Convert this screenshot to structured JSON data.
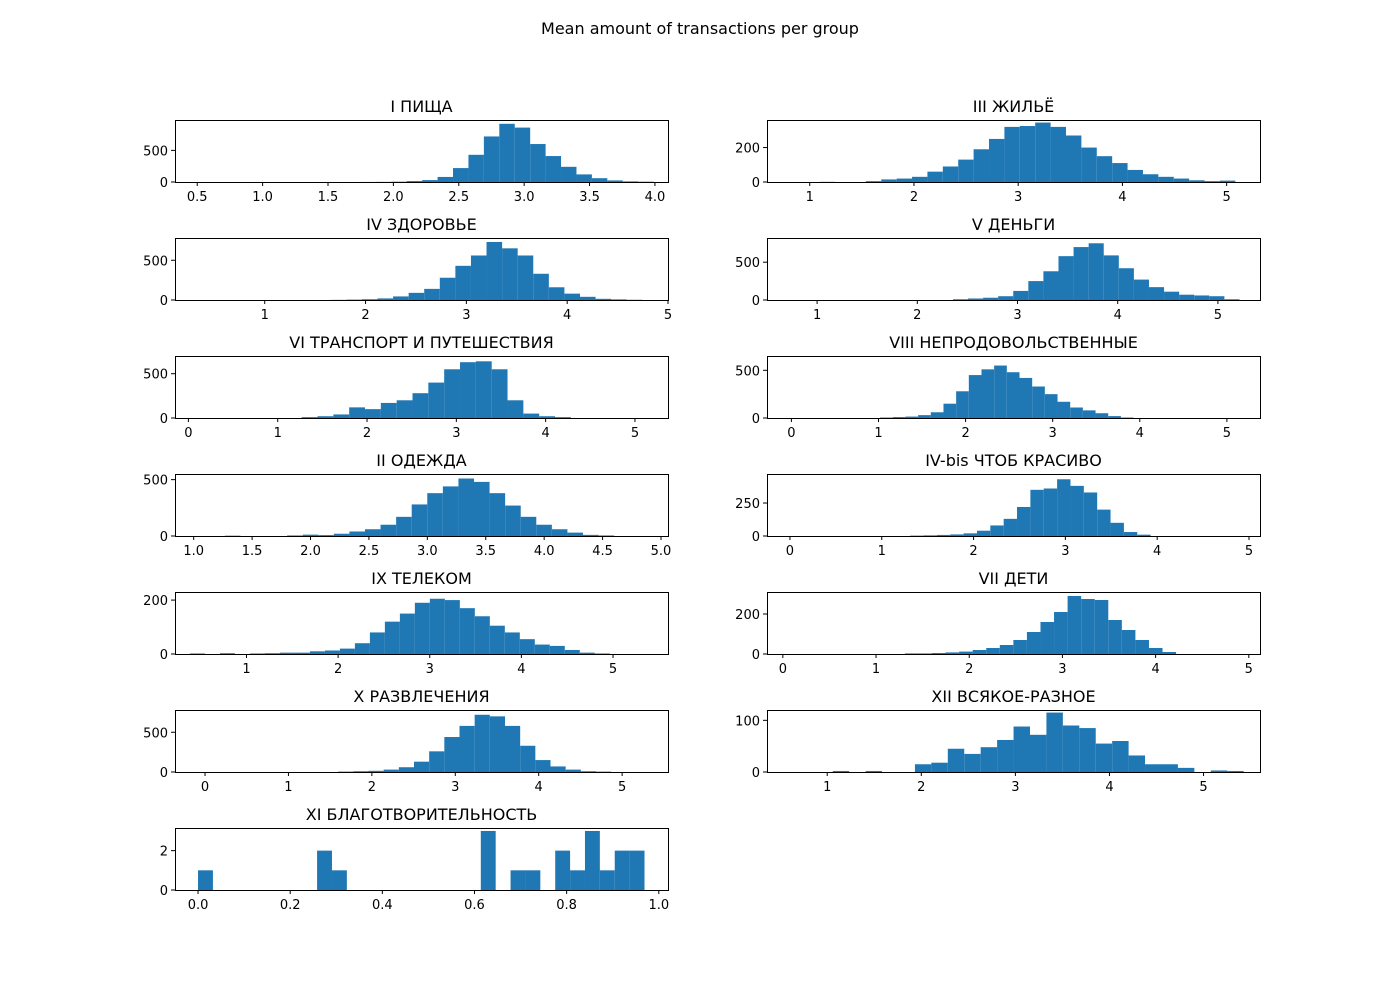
{
  "figure": {
    "suptitle": "Mean amount of transactions per group",
    "bar_color": "#1f77b4"
  },
  "chart_data": [
    {
      "type": "bar",
      "title": "I ПИЩА",
      "xlim": [
        0.33,
        4.1
      ],
      "ylim": [
        0,
        980
      ],
      "xticks": [
        0.5,
        1.0,
        1.5,
        2.0,
        2.5,
        3.0,
        3.5,
        4.0
      ],
      "xticklabels": [
        "0.5",
        "1.0",
        "1.5",
        "2.0",
        "2.5",
        "3.0",
        "3.5",
        "4.0"
      ],
      "yticks": [
        0,
        500
      ],
      "yticklabels": [
        "0",
        "500"
      ],
      "bin_start": 0.45,
      "bin_width": 0.118,
      "values": [
        0,
        0,
        0,
        0,
        0,
        0,
        0,
        0,
        0,
        0,
        0,
        1,
        2,
        5,
        15,
        30,
        80,
        220,
        430,
        720,
        920,
        860,
        600,
        410,
        240,
        120,
        60,
        25,
        10,
        5
      ]
    },
    {
      "type": "bar",
      "title": "III ЖИЛЬЁ",
      "xlim": [
        0.59,
        5.32
      ],
      "ylim": [
        0,
        360
      ],
      "xticks": [
        1,
        2,
        3,
        4,
        5
      ],
      "xticklabels": [
        "1",
        "2",
        "3",
        "4",
        "5"
      ],
      "yticks": [
        0,
        200
      ],
      "yticklabels": [
        "0",
        "200"
      ],
      "bin_start": 0.8,
      "bin_width": 0.1477,
      "values": [
        0,
        0,
        1,
        0,
        0,
        5,
        15,
        20,
        30,
        60,
        90,
        130,
        190,
        250,
        320,
        325,
        345,
        320,
        270,
        200,
        150,
        110,
        70,
        45,
        30,
        20,
        10,
        5,
        8,
        0
      ]
    },
    {
      "type": "bar",
      "title": "IV ЗДОРОВЬЕ",
      "xlim": [
        0.11,
        5.0
      ],
      "ylim": [
        0,
        780
      ],
      "xticks": [
        1,
        2,
        3,
        4,
        5
      ],
      "xticklabels": [
        "1",
        "2",
        "3",
        "4",
        "5"
      ],
      "yticks": [
        0,
        500
      ],
      "yticklabels": [
        "0",
        "500"
      ],
      "bin_start": 0.11,
      "bin_width": 0.1545,
      "values": [
        0,
        0,
        0,
        0,
        0,
        0,
        0,
        0,
        0,
        0,
        2,
        5,
        10,
        20,
        45,
        90,
        140,
        280,
        430,
        560,
        730,
        650,
        560,
        330,
        160,
        80,
        40,
        15,
        8,
        3
      ]
    },
    {
      "type": "bar",
      "title": "V ДЕНЬГИ",
      "xlim": [
        0.5,
        5.42
      ],
      "ylim": [
        0,
        820
      ],
      "xticks": [
        1,
        2,
        3,
        4,
        5
      ],
      "xticklabels": [
        "1",
        "2",
        "3",
        "4",
        "5"
      ],
      "yticks": [
        0,
        500
      ],
      "yticklabels": [
        "0",
        "500"
      ],
      "bin_start": 0.7,
      "bin_width": 0.1505,
      "values": [
        0,
        0,
        0,
        0,
        0,
        0,
        0,
        0,
        0,
        0,
        0,
        10,
        20,
        30,
        50,
        120,
        250,
        380,
        580,
        700,
        750,
        590,
        420,
        270,
        170,
        110,
        70,
        60,
        50,
        10
      ]
    },
    {
      "type": "bar",
      "title": "VI ТРАНСПОРТ И ПУТЕШЕСТВИЯ",
      "xlim": [
        -0.15,
        5.37
      ],
      "ylim": [
        0,
        700
      ],
      "xticks": [
        0,
        1,
        2,
        3,
        4,
        5
      ],
      "xticklabels": [
        "0",
        "1",
        "2",
        "3",
        "4",
        "5"
      ],
      "yticks": [
        0,
        500
      ],
      "yticklabels": [
        "0",
        "500"
      ],
      "bin_start": -0.15,
      "bin_width": 0.1773,
      "values": [
        0,
        0,
        0,
        0,
        0,
        0,
        0,
        0,
        10,
        20,
        40,
        120,
        100,
        170,
        200,
        280,
        400,
        550,
        630,
        640,
        550,
        200,
        50,
        20,
        10,
        0,
        0,
        0,
        0,
        0
      ]
    },
    {
      "type": "bar",
      "title": "VIII НЕПРОДОВОЛЬСТВЕННЫЕ",
      "xlim": [
        -0.28,
        5.38
      ],
      "ylim": [
        0,
        650
      ],
      "xticks": [
        0,
        1,
        2,
        3,
        4,
        5
      ],
      "xticklabels": [
        "0",
        "1",
        "2",
        "3",
        "4",
        "5"
      ],
      "yticks": [
        0,
        500
      ],
      "yticklabels": [
        "0",
        "500"
      ],
      "bin_start": 0.0,
      "bin_width": 0.1455,
      "values": [
        0,
        0,
        0,
        0,
        0,
        0,
        0,
        5,
        10,
        15,
        30,
        60,
        150,
        280,
        450,
        510,
        550,
        480,
        420,
        330,
        250,
        170,
        110,
        80,
        50,
        20,
        5,
        0,
        0,
        0
      ]
    },
    {
      "type": "bar",
      "title": "II ОДЕЖДА",
      "xlim": [
        0.84,
        5.06
      ],
      "ylim": [
        0,
        550
      ],
      "xticks": [
        1.0,
        1.5,
        2.0,
        2.5,
        3.0,
        3.5,
        4.0,
        4.5,
        5.0
      ],
      "xticklabels": [
        "1.0",
        "1.5",
        "2.0",
        "2.5",
        "3.0",
        "3.5",
        "4.0",
        "4.5",
        "5.0"
      ],
      "yticks": [
        0,
        500
      ],
      "yticklabels": [
        "0",
        "500"
      ],
      "bin_start": 1.0,
      "bin_width": 0.1333,
      "values": [
        0,
        0,
        3,
        0,
        0,
        0,
        5,
        12,
        8,
        20,
        40,
        60,
        100,
        170,
        280,
        380,
        440,
        510,
        480,
        380,
        270,
        170,
        100,
        60,
        30,
        10,
        5,
        0,
        0,
        0
      ]
    },
    {
      "type": "bar",
      "title": "IV-bis ЧТОБ КРАСИВО",
      "xlim": [
        -0.25,
        5.12
      ],
      "ylim": [
        0,
        470
      ],
      "xticks": [
        0,
        1,
        2,
        3,
        4,
        5
      ],
      "xticklabels": [
        "0",
        "1",
        "2",
        "3",
        "4",
        "5"
      ],
      "yticks": [
        0,
        250
      ],
      "yticklabels": [
        "0",
        "250"
      ],
      "bin_start": 0.0,
      "bin_width": 0.1455,
      "values": [
        0,
        0,
        0,
        0,
        0,
        0,
        0,
        0,
        0,
        3,
        5,
        8,
        12,
        20,
        40,
        80,
        130,
        220,
        350,
        360,
        430,
        380,
        330,
        200,
        100,
        30,
        10,
        0,
        0,
        0
      ]
    },
    {
      "type": "bar",
      "title": "IX ТЕЛЕКОМ",
      "xlim": [
        0.22,
        5.6
      ],
      "ylim": [
        0,
        230
      ],
      "xticks": [
        1,
        2,
        3,
        4,
        5
      ],
      "xticklabels": [
        "1",
        "2",
        "3",
        "4",
        "5"
      ],
      "yticks": [
        0,
        200
      ],
      "yticklabels": [
        "0",
        "200"
      ],
      "bin_start": 0.22,
      "bin_width": 0.1636,
      "values": [
        0,
        2,
        0,
        3,
        0,
        2,
        3,
        5,
        5,
        10,
        13,
        20,
        40,
        80,
        120,
        150,
        190,
        205,
        200,
        170,
        140,
        105,
        80,
        55,
        35,
        30,
        15,
        5,
        2,
        0
      ]
    },
    {
      "type": "bar",
      "title": "VII ДЕТИ",
      "xlim": [
        -0.17,
        5.12
      ],
      "ylim": [
        0,
        310
      ],
      "xticks": [
        0,
        1,
        2,
        3,
        4,
        5
      ],
      "xticklabels": [
        "0",
        "1",
        "2",
        "3",
        "4",
        "5"
      ],
      "yticks": [
        0,
        200
      ],
      "yticklabels": [
        "0",
        "200"
      ],
      "bin_start": 0.0,
      "bin_width": 0.1455,
      "values": [
        0,
        0,
        0,
        0,
        0,
        0,
        0,
        0,
        0,
        3,
        3,
        5,
        8,
        12,
        20,
        30,
        45,
        70,
        110,
        160,
        210,
        290,
        275,
        270,
        170,
        120,
        70,
        30,
        10,
        0
      ]
    },
    {
      "type": "bar",
      "title": "X РАЗВЛЕЧЕНИЯ",
      "xlim": [
        -0.36,
        5.55
      ],
      "ylim": [
        0,
        780
      ],
      "xticks": [
        0,
        1,
        2,
        3,
        4,
        5
      ],
      "xticklabels": [
        "0",
        "1",
        "2",
        "3",
        "4",
        "5"
      ],
      "yticks": [
        0,
        500
      ],
      "yticklabels": [
        "0",
        "500"
      ],
      "bin_start": -0.04,
      "bin_width": 0.1818,
      "values": [
        0,
        0,
        0,
        0,
        0,
        0,
        0,
        0,
        0,
        5,
        10,
        15,
        30,
        60,
        130,
        260,
        440,
        580,
        720,
        700,
        580,
        330,
        150,
        70,
        30,
        10,
        5,
        0,
        0,
        0
      ]
    },
    {
      "type": "bar",
      "title": "XII ВСЯКОЕ-РАЗНОЕ",
      "xlim": [
        0.36,
        5.6
      ],
      "ylim": [
        0,
        120
      ],
      "xticks": [
        1,
        2,
        3,
        4,
        5
      ],
      "xticklabels": [
        "1",
        "2",
        "3",
        "4",
        "5"
      ],
      "yticks": [
        0,
        100
      ],
      "yticklabels": [
        "0",
        "100"
      ],
      "bin_start": 0.36,
      "bin_width": 0.1747,
      "values": [
        0,
        0,
        0,
        0,
        2,
        0,
        2,
        0,
        0,
        15,
        18,
        45,
        35,
        48,
        62,
        88,
        72,
        115,
        90,
        85,
        55,
        60,
        32,
        15,
        15,
        8,
        0,
        3,
        2,
        0
      ]
    },
    {
      "type": "bar",
      "title": "XI БЛАГОТВОРИТЕЛЬНОСТЬ",
      "xlim": [
        -0.05,
        1.02
      ],
      "ylim": [
        0,
        3.15
      ],
      "xticks": [
        0.0,
        0.2,
        0.4,
        0.6,
        0.8,
        1.0
      ],
      "xticklabels": [
        "0.0",
        "0.2",
        "0.4",
        "0.6",
        "0.8",
        "1.0"
      ],
      "yticks": [
        0,
        2
      ],
      "yticklabels": [
        "0",
        "2"
      ],
      "bin_start": 0.0,
      "bin_width": 0.0323,
      "values": [
        1,
        0,
        0,
        0,
        0,
        0,
        0,
        0,
        2,
        1,
        0,
        0,
        0,
        0,
        0,
        0,
        0,
        0,
        0,
        3,
        0,
        1,
        1,
        0,
        2,
        1,
        3,
        1,
        2,
        2
      ]
    }
  ]
}
